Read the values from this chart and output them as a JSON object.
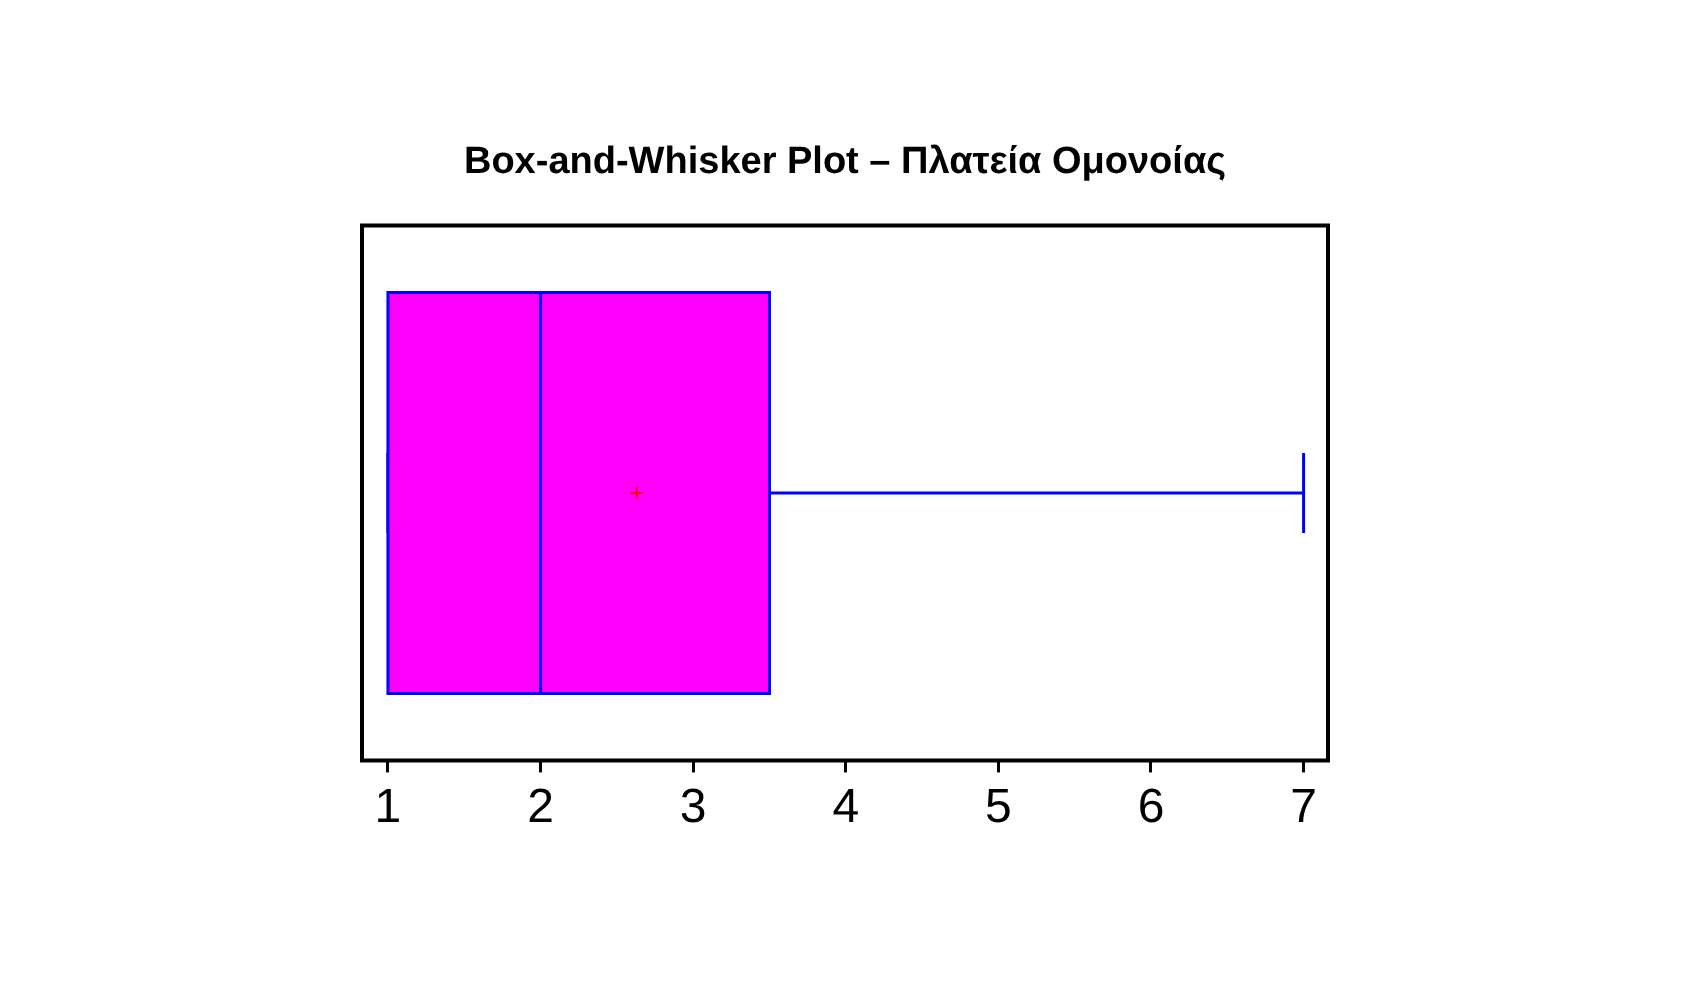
{
  "chart_data": {
    "type": "box",
    "title": "Box-and-Whisker Plot – Πλατεία Ομονοίας",
    "orientation": "horizontal",
    "categories": [
      null
    ],
    "series": [
      {
        "color": "#ff00ff",
        "boxes": [
          {
            "low": 1,
            "q1": 1,
            "median": 2,
            "q3": 3.5,
            "high": 7,
            "mean": 2.63
          }
        ]
      }
    ],
    "xlim": [
      0.83,
      7.16
    ],
    "xticks": [
      1,
      2,
      3,
      4,
      5,
      6,
      7
    ],
    "grid": false,
    "legend": false
  }
}
